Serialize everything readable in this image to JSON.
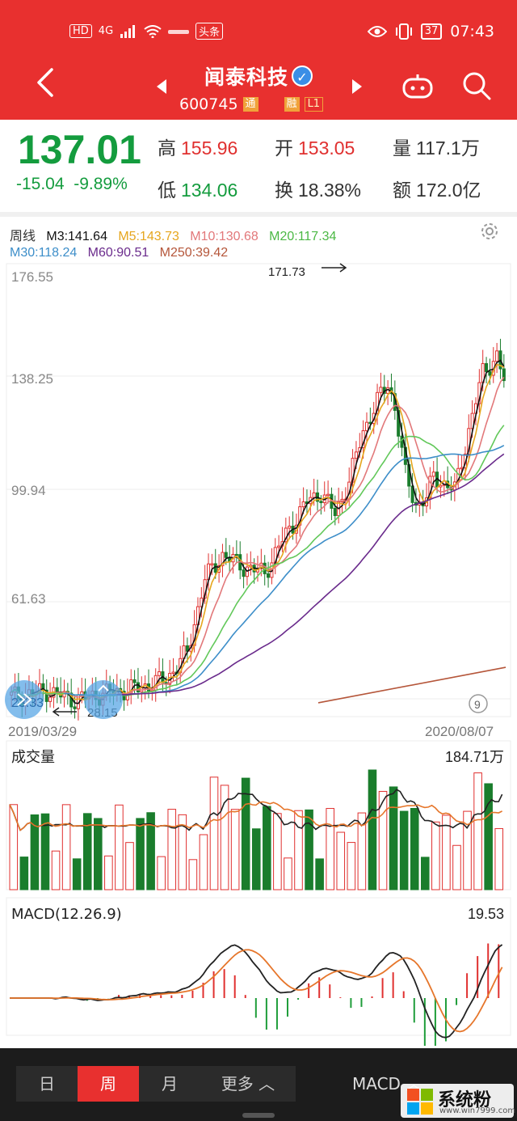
{
  "status_bar": {
    "left": [
      "HD",
      "4G",
      "头条"
    ],
    "battery": "37",
    "time": "07:43"
  },
  "header": {
    "stock_name": "闻泰科技",
    "verified_mark": "✓",
    "code": "600745",
    "tags": [
      "通",
      "融",
      "L1"
    ]
  },
  "quote": {
    "price": "137.01",
    "change": "-15.04",
    "change_pct": "-9.89%",
    "high_label": "高",
    "high": "155.96",
    "open_label": "开",
    "open": "153.05",
    "volume_label": "量",
    "volume": "117.1万",
    "low_label": "低",
    "low": "134.06",
    "turnover_label": "换",
    "turnover": "18.38%",
    "amount_label": "额",
    "amount": "172.0亿"
  },
  "ma_legend": {
    "period": "周线",
    "m3": "M3:141.64",
    "m5": "M5:143.73",
    "m10": "M10:130.68",
    "m20": "M20:117.34",
    "m30": "M30:118.24",
    "m60": "M60:90.51",
    "m250": "M250:39.42"
  },
  "colors": {
    "up": "#e0302f",
    "down": "#1a7d2c",
    "m3": "#111111",
    "m5": "#e6a61e",
    "m10": "#e2787a",
    "m20": "#62c85a",
    "m30": "#3d8ec9",
    "m60": "#6a2b8c",
    "m250": "#b5563a"
  },
  "chart_data": [
    {
      "type": "candlestick",
      "title": "",
      "y_ticks": [
        "176.55",
        "138.25",
        "99.94",
        "61.63",
        "23.33"
      ],
      "ylim": [
        23.33,
        176.55
      ],
      "x_start": "2019/03/29",
      "x_end": "2020/08/07",
      "max_annotation": "171.73",
      "min_annotation": "28.15",
      "badge": "9"
    },
    {
      "type": "bar",
      "title": "成交量",
      "max_label": "184.71万"
    },
    {
      "type": "bar",
      "title": "MACD(12.26.9)",
      "max_label": "19.53"
    }
  ],
  "bottom_bar": {
    "tabs": [
      "日",
      "周",
      "月",
      "更多 ︿"
    ],
    "active_tab": "周",
    "indicator": "MACD ︿"
  },
  "watermark": {
    "text": "系统粉",
    "sub": "www.win7999.com"
  }
}
